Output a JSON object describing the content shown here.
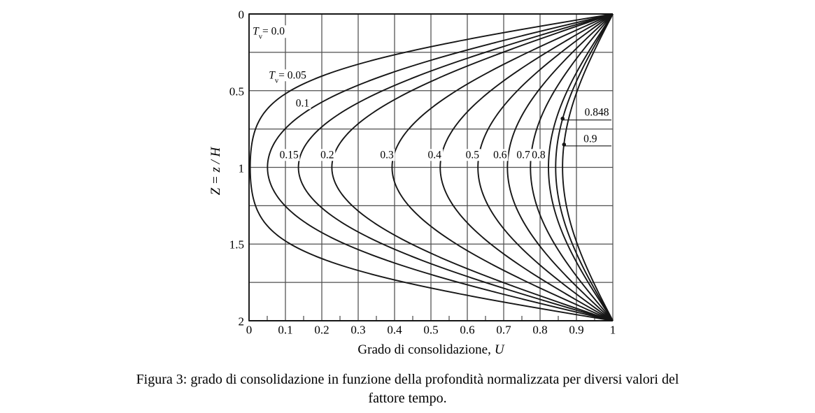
{
  "figure": {
    "caption_line1": "Figura 3: grado di consolidazione in funzione della profondità normalizzata per diversi valori del",
    "caption_line2": "fattore tempo."
  },
  "colors": {
    "background": "#ffffff",
    "grid": "#4f4f4f",
    "curve": "#161616",
    "text": "#000000"
  },
  "chart_data": {
    "type": "line",
    "title": "",
    "xlabel_text": "Grado di consolidazione,",
    "xlabel_var": "U",
    "ylabel": "Z = z / H",
    "xlim": [
      0,
      1
    ],
    "ylim": [
      0,
      2
    ],
    "y_axis_inverted_downward": true,
    "grid": true,
    "x_grid_step": 0.1,
    "y_grid_step": 0.25,
    "x_minor_tick_step": 0.05,
    "x_tick_labels": [
      "0",
      "0.1",
      "0.2",
      "0.3",
      "0.4",
      "0.5",
      "0.6",
      "0.7",
      "0.8",
      "0.9",
      "1"
    ],
    "x_tick_values": [
      0,
      0.1,
      0.2,
      0.3,
      0.4,
      0.5,
      0.6,
      0.7,
      0.8,
      0.9,
      1
    ],
    "y_tick_labels": [
      "0",
      "0.5",
      "1",
      "1.5",
      "2"
    ],
    "y_tick_values": [
      0,
      0.5,
      1,
      1.5,
      2
    ],
    "formula_note": "Isochrones Uz(Z,Tv) = 1 - sum_m (2/M) sin(M Z) exp(-M^2 Tv), M=(2m+1)pi/2, drained at Z=0 and Z=2",
    "series": [
      {
        "tv": 0.0,
        "label_T": "T",
        "label_sub": "v",
        "label_rest": "= 0.0",
        "u_min_at_z1": 0.0,
        "label_u": 0.054,
        "label_z": 0.115
      },
      {
        "tv": 0.05,
        "label_T": "T",
        "label_sub": "v",
        "label_rest": "= 0.05",
        "u_min_at_z1": 0.003,
        "label_u": 0.106,
        "label_z": 0.4
      },
      {
        "tv": 0.1,
        "label": "0.1",
        "u_min_at_z1": 0.051,
        "label_u": 0.147,
        "label_z": 0.582
      },
      {
        "tv": 0.15,
        "label": "0.15",
        "u_min_at_z1": 0.136,
        "label_u": 0.11,
        "label_z": 0.918
      },
      {
        "tv": 0.2,
        "label": "0.2",
        "u_min_at_z1": 0.228,
        "label_u": 0.215,
        "label_z": 0.918
      },
      {
        "tv": 0.3,
        "label": "0.3",
        "u_min_at_z1": 0.393,
        "label_u": 0.379,
        "label_z": 0.918
      },
      {
        "tv": 0.4,
        "label": "0.4",
        "u_min_at_z1": 0.526,
        "label_u": 0.51,
        "label_z": 0.918
      },
      {
        "tv": 0.5,
        "label": "0.5",
        "u_min_at_z1": 0.629,
        "label_u": 0.614,
        "label_z": 0.918
      },
      {
        "tv": 0.6,
        "label": "0.6",
        "u_min_at_z1": 0.71,
        "label_u": 0.69,
        "label_z": 0.918
      },
      {
        "tv": 0.7,
        "label": "0.7",
        "u_min_at_z1": 0.774,
        "label_u": 0.754,
        "label_z": 0.918
      },
      {
        "tv": 0.8,
        "label": "0.8",
        "u_min_at_z1": 0.823,
        "label_u": 0.796,
        "label_z": 0.918
      },
      {
        "tv": 0.848,
        "label": "0.848",
        "u_min_at_z1": 0.843,
        "annotation": {
          "label_u": 0.956,
          "label_z": 0.641,
          "dot_u": 0.862,
          "dot_z": 0.682
        }
      },
      {
        "tv": 0.9,
        "label": "0.9",
        "u_min_at_z1": 0.862,
        "annotation": {
          "label_u": 0.938,
          "label_z": 0.814,
          "dot_u": 0.866,
          "dot_z": 0.851
        }
      }
    ]
  }
}
